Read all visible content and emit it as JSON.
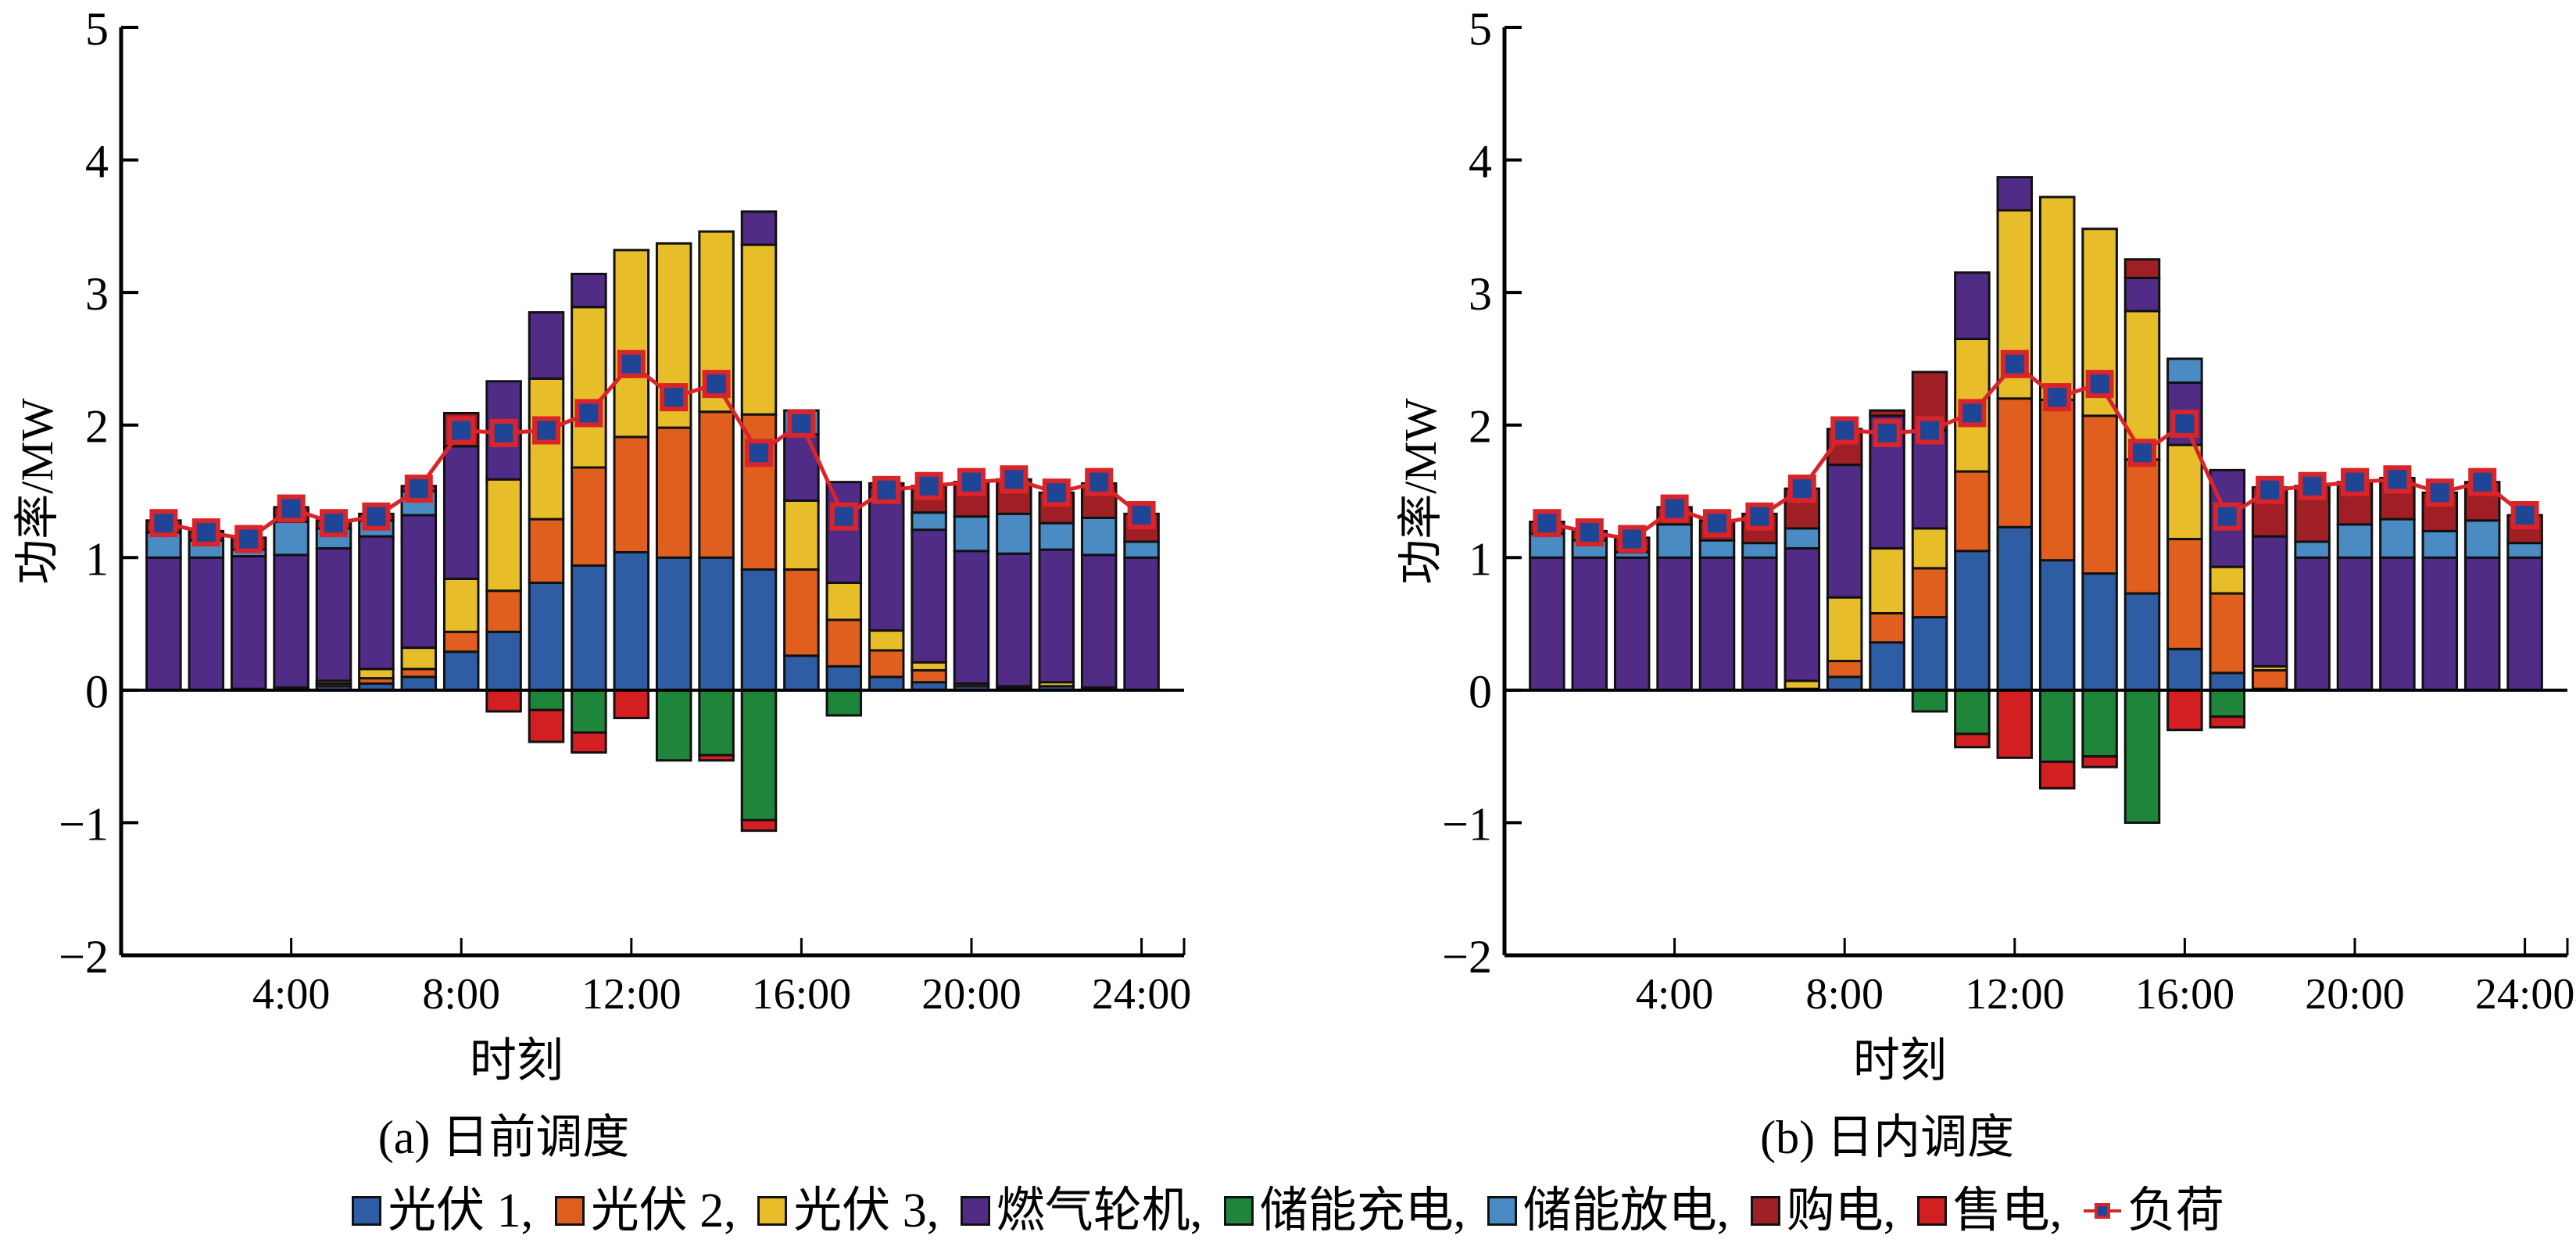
{
  "legend": {
    "items": [
      {
        "key": "pv1",
        "label": "光伏 1,",
        "color": "#2e5da3",
        "kind": "bar"
      },
      {
        "key": "pv2",
        "label": "光伏 2,",
        "color": "#e05f1e",
        "kind": "bar"
      },
      {
        "key": "pv3",
        "label": "光伏 3,",
        "color": "#e8bd2a",
        "kind": "bar"
      },
      {
        "key": "gt",
        "label": "燃气轮机,",
        "color": "#512c86",
        "kind": "bar"
      },
      {
        "key": "charge",
        "label": "储能充电,",
        "color": "#1f853b",
        "kind": "bar"
      },
      {
        "key": "discharge",
        "label": "储能放电,",
        "color": "#4a8bc4",
        "kind": "bar"
      },
      {
        "key": "buy",
        "label": "购电,",
        "color": "#a01f24",
        "kind": "bar"
      },
      {
        "key": "sell",
        "label": "售电,",
        "color": "#d41f22",
        "kind": "bar"
      },
      {
        "key": "load",
        "label": "负荷",
        "color": "#d9252a",
        "marker_color": "#1f4596",
        "kind": "line"
      }
    ]
  },
  "chart_data": [
    {
      "type": "bar",
      "stacked": true,
      "title": "(a)  日前调度",
      "xlabel": "时刻",
      "ylabel": "功率/MW",
      "ylim": [
        -2,
        5
      ],
      "yticks": [
        -2,
        -1,
        0,
        1,
        2,
        3,
        4,
        5
      ],
      "ytick_labels": [
        "−2",
        "−1",
        "0",
        "1",
        "2",
        "3",
        "4",
        "5"
      ],
      "xlim": [
        0,
        25
      ],
      "xticks": [
        4,
        8,
        12,
        16,
        20,
        24
      ],
      "xtick_labels": [
        "4:00",
        "8:00",
        "12:00",
        "16:00",
        "20:00",
        "24:00"
      ],
      "x": [
        1,
        2,
        3,
        4,
        5,
        6,
        7,
        8,
        9,
        10,
        11,
        12,
        13,
        14,
        15,
        16,
        17,
        18,
        19,
        20,
        21,
        22,
        23,
        24
      ],
      "grid": false,
      "legend_position": "bottom-center",
      "series": [
        {
          "key": "pv1",
          "name": "光伏 1",
          "values": [
            0,
            0,
            0.01,
            0.02,
            0.03,
            0.05,
            0.1,
            0.29,
            0.44,
            0.81,
            0.94,
            1.04,
            1.0,
            1.0,
            0.91,
            0.26,
            0.18,
            0.1,
            0.06,
            0.03,
            0.02,
            0.03,
            0.02,
            0
          ]
        },
        {
          "key": "pv2",
          "name": "光伏 2",
          "values": [
            0,
            0,
            0,
            0,
            0.02,
            0.04,
            0.06,
            0.15,
            0.31,
            0.48,
            0.74,
            0.87,
            0.98,
            1.1,
            1.17,
            0.65,
            0.35,
            0.2,
            0.09,
            0.02,
            0.01,
            0,
            0,
            0
          ]
        },
        {
          "key": "pv3",
          "name": "光伏 3",
          "values": [
            0,
            0,
            0,
            0,
            0.02,
            0.07,
            0.16,
            0.4,
            0.84,
            1.06,
            1.21,
            1.41,
            1.39,
            1.36,
            1.28,
            0.52,
            0.28,
            0.15,
            0.06,
            0,
            0,
            0.03,
            0,
            0
          ]
        },
        {
          "key": "gt",
          "name": "燃气轮机",
          "values": [
            1.0,
            1.0,
            1.0,
            1.0,
            1.0,
            1.0,
            1.0,
            1.0,
            0.74,
            0.5,
            0.25,
            0,
            0,
            0,
            0.25,
            0.5,
            0.76,
            1.08,
            1.0,
            1.0,
            1.0,
            1.0,
            1.0,
            1.0
          ]
        },
        {
          "key": "discharge",
          "name": "储能放电",
          "values": [
            0.19,
            0.13,
            0.05,
            0.25,
            0.15,
            0.12,
            0.18,
            0,
            0,
            0,
            0,
            0,
            0,
            0,
            0,
            0.18,
            0,
            0,
            0.13,
            0.26,
            0.3,
            0.2,
            0.28,
            0.12
          ]
        },
        {
          "key": "buy",
          "name": "购电",
          "values": [
            0.09,
            0.07,
            0.09,
            0.11,
            0.06,
            0.05,
            0.04,
            0.25,
            0,
            0,
            0,
            0,
            0,
            0,
            0,
            0,
            0,
            0.03,
            0.2,
            0.26,
            0.26,
            0.23,
            0.26,
            0.21
          ]
        },
        {
          "key": "charge",
          "name": "储能充电",
          "values": [
            0,
            0,
            0,
            0,
            0,
            0,
            0,
            0,
            0,
            -0.15,
            -0.32,
            0,
            -0.53,
            -0.49,
            -0.98,
            0,
            -0.19,
            0,
            0,
            0,
            0,
            0,
            0,
            0
          ]
        },
        {
          "key": "sell",
          "name": "售电",
          "values": [
            0,
            0,
            0,
            0,
            0,
            0,
            0,
            0,
            -0.16,
            -0.24,
            -0.15,
            -0.21,
            0,
            -0.04,
            -0.08,
            0,
            0,
            0,
            0,
            0,
            0,
            0,
            0,
            0
          ]
        },
        {
          "key": "load",
          "name": "负荷",
          "type": "line",
          "values": [
            1.26,
            1.19,
            1.14,
            1.37,
            1.26,
            1.31,
            1.52,
            1.96,
            1.94,
            1.96,
            2.09,
            2.46,
            2.21,
            2.31,
            1.79,
            2.01,
            1.31,
            1.51,
            1.54,
            1.57,
            1.59,
            1.49,
            1.57,
            1.32
          ]
        }
      ]
    },
    {
      "type": "bar",
      "stacked": true,
      "title": "(b)  日内调度",
      "xlabel": "时刻",
      "ylabel": "功率/MW",
      "ylim": [
        -2,
        5
      ],
      "yticks": [
        -2,
        -1,
        0,
        1,
        2,
        3,
        4,
        5
      ],
      "ytick_labels": [
        "−2",
        "−1",
        "0",
        "1",
        "2",
        "3",
        "4",
        "5"
      ],
      "xlim": [
        0,
        25
      ],
      "xticks": [
        4,
        8,
        12,
        16,
        20,
        24
      ],
      "xtick_labels": [
        "4:00",
        "8:00",
        "12:00",
        "16:00",
        "20:00",
        "24:00"
      ],
      "x": [
        1,
        2,
        3,
        4,
        5,
        6,
        7,
        8,
        9,
        10,
        11,
        12,
        13,
        14,
        15,
        16,
        17,
        18,
        19,
        20,
        21,
        22,
        23,
        24
      ],
      "grid": false,
      "legend_position": "bottom-center",
      "series": [
        {
          "key": "pv1",
          "name": "光伏 1",
          "values": [
            0,
            0,
            0,
            0,
            0,
            0,
            0.01,
            0.1,
            0.36,
            0.55,
            1.05,
            1.23,
            0.98,
            0.88,
            0.73,
            0.31,
            0.13,
            0.01,
            0,
            0,
            0,
            0,
            0,
            0
          ]
        },
        {
          "key": "pv2",
          "name": "光伏 2",
          "values": [
            0,
            0,
            0,
            0,
            0,
            0,
            0,
            0.12,
            0.22,
            0.37,
            0.6,
            0.97,
            1.21,
            1.19,
            1.01,
            0.83,
            0.6,
            0.14,
            0,
            0,
            0,
            0,
            0,
            0
          ]
        },
        {
          "key": "pv3",
          "name": "光伏 3",
          "values": [
            0,
            0,
            0,
            0,
            0,
            0,
            0.06,
            0.48,
            0.49,
            0.3,
            1.0,
            1.42,
            1.53,
            1.41,
            1.12,
            0.71,
            0.2,
            0.03,
            0,
            0,
            0,
            0,
            0,
            0
          ]
        },
        {
          "key": "gt",
          "name": "燃气轮机",
          "values": [
            1.0,
            1.0,
            1.0,
            1.0,
            1.0,
            1.0,
            1.0,
            1.0,
            1.0,
            0.74,
            0.5,
            0.25,
            0,
            0,
            0.25,
            0.47,
            0.73,
            0.98,
            1.0,
            1.0,
            1.0,
            1.0,
            1.0,
            1.0
          ]
        },
        {
          "key": "discharge",
          "name": "储能放电",
          "values": [
            0.18,
            0.13,
            0.04,
            0.25,
            0.13,
            0.11,
            0.15,
            0,
            0,
            0,
            0,
            0,
            0,
            0,
            0,
            0.18,
            0,
            0,
            0.12,
            0.25,
            0.29,
            0.2,
            0.28,
            0.11
          ]
        },
        {
          "key": "buy",
          "name": "购电",
          "values": [
            0.09,
            0.07,
            0.11,
            0.13,
            0.15,
            0.22,
            0.3,
            0.27,
            0.04,
            0.44,
            0,
            0,
            0,
            0,
            0.14,
            0,
            0,
            0.37,
            0.42,
            0.32,
            0.31,
            0.29,
            0.29,
            0.21
          ]
        },
        {
          "key": "charge",
          "name": "储能充电",
          "values": [
            0,
            0,
            0,
            0,
            0,
            0,
            0,
            0,
            0,
            -0.16,
            -0.33,
            0,
            -0.54,
            -0.5,
            -1.0,
            0,
            -0.2,
            0,
            0,
            0,
            0,
            0,
            0,
            0
          ]
        },
        {
          "key": "sell",
          "name": "售电",
          "values": [
            0,
            0,
            0,
            0,
            0,
            0,
            0,
            0,
            0,
            0,
            -0.1,
            -0.51,
            -0.2,
            -0.08,
            0,
            -0.3,
            -0.08,
            0,
            0,
            0,
            0,
            0,
            0,
            0
          ]
        },
        {
          "key": "load",
          "name": "负荷",
          "type": "line",
          "values": [
            1.26,
            1.19,
            1.14,
            1.37,
            1.26,
            1.31,
            1.52,
            1.96,
            1.94,
            1.96,
            2.09,
            2.46,
            2.21,
            2.31,
            1.79,
            2.01,
            1.31,
            1.51,
            1.54,
            1.57,
            1.59,
            1.49,
            1.57,
            1.32
          ]
        }
      ]
    }
  ]
}
